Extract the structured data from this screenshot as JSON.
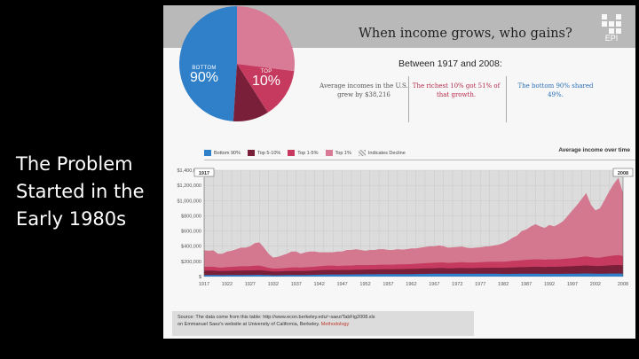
{
  "slide": {
    "lines": [
      "The Problem",
      "Started in the",
      "Early 1980s"
    ]
  },
  "infographic": {
    "title": "When income grows, who gains?",
    "logo_text": "EPI",
    "period": "Between 1917 and 2008:",
    "stats": [
      "Average incomes in the U.S. grew by $38,216",
      "The richest 10% got 51% of that growth.",
      "The bottom 90% shared 49%."
    ],
    "pie": {
      "bottom_label": "BOTTOM",
      "bottom_value": "90%",
      "top_label": "TOP",
      "top_value": "10%"
    },
    "source_line1": "Source: The data come from this table: http://www.econ.berkeley.edu/~saez/TabFig2008.xls",
    "source_line2": "on Emmanuel Saez's website at University of California, Berkeley.",
    "source_link": "Methodology"
  },
  "colors": {
    "bottom90": "#2f7fc9",
    "top5_10": "#7a1f3a",
    "top1_5": "#c53a5e",
    "top1": "#d97a96",
    "top1_area": "#d3788f",
    "grid_bg": "#dcdcdc"
  },
  "chart_data": {
    "type": "area",
    "title": "Average income over time",
    "legend": [
      {
        "name": "Bottom 90%",
        "color": "#2f7fc9"
      },
      {
        "name": "Top 5-10%",
        "color": "#7a1f3a"
      },
      {
        "name": "Top 1-5%",
        "color": "#c53a5e"
      },
      {
        "name": "Top 1%",
        "color": "#d97a96"
      },
      {
        "name": "Indicates Decline",
        "color": "#bbbbbb"
      }
    ],
    "start_marker": "1917",
    "end_marker": "2008",
    "y_ticks": [
      "$1,400,000",
      "$1,200,000",
      "$1,000,000",
      "$800,000",
      "$600,000",
      "$400,000",
      "$200,000",
      "$"
    ],
    "ylim": [
      0,
      1400000
    ],
    "x_ticks": [
      "1917",
      "1922",
      "1927",
      "1932",
      "1937",
      "1942",
      "1947",
      "1952",
      "1957",
      "1962",
      "1967",
      "1972",
      "1977",
      "1982",
      "1987",
      "1992",
      "1997",
      "2002",
      "2008"
    ],
    "x": [
      1917,
      1918,
      1919,
      1920,
      1921,
      1922,
      1923,
      1924,
      1925,
      1926,
      1927,
      1928,
      1929,
      1930,
      1931,
      1932,
      1933,
      1934,
      1935,
      1936,
      1937,
      1938,
      1939,
      1940,
      1941,
      1942,
      1943,
      1944,
      1945,
      1946,
      1947,
      1948,
      1949,
      1950,
      1951,
      1952,
      1953,
      1954,
      1955,
      1956,
      1957,
      1958,
      1959,
      1960,
      1961,
      1962,
      1963,
      1964,
      1965,
      1966,
      1967,
      1968,
      1969,
      1970,
      1971,
      1972,
      1973,
      1974,
      1975,
      1976,
      1977,
      1978,
      1979,
      1980,
      1981,
      1982,
      1983,
      1984,
      1985,
      1986,
      1987,
      1988,
      1989,
      1990,
      1991,
      1992,
      1993,
      1994,
      1995,
      1996,
      1997,
      1998,
      1999,
      2000,
      2001,
      2002,
      2003,
      2004,
      2005,
      2006,
      2007,
      2008
    ],
    "series": [
      {
        "name": "Top 1%",
        "values": [
          345000,
          340000,
          345000,
          300000,
          300000,
          330000,
          340000,
          360000,
          380000,
          380000,
          400000,
          440000,
          450000,
          380000,
          300000,
          250000,
          260000,
          280000,
          300000,
          330000,
          330000,
          300000,
          320000,
          330000,
          330000,
          320000,
          320000,
          320000,
          320000,
          330000,
          330000,
          350000,
          350000,
          360000,
          350000,
          340000,
          350000,
          350000,
          360000,
          360000,
          350000,
          350000,
          360000,
          355000,
          360000,
          370000,
          370000,
          380000,
          390000,
          400000,
          400000,
          410000,
          400000,
          380000,
          385000,
          390000,
          395000,
          380000,
          375000,
          380000,
          385000,
          395000,
          400000,
          410000,
          420000,
          440000,
          470000,
          510000,
          540000,
          600000,
          620000,
          660000,
          690000,
          660000,
          640000,
          680000,
          660000,
          690000,
          730000,
          800000,
          870000,
          940000,
          1020000,
          1100000,
          950000,
          870000,
          900000,
          1010000,
          1120000,
          1220000,
          1300000,
          1100000
        ]
      },
      {
        "name": "Top 1-5%",
        "values": [
          130000,
          128000,
          130000,
          120000,
          118000,
          125000,
          128000,
          132000,
          135000,
          135000,
          138000,
          142000,
          145000,
          132000,
          115000,
          105000,
          106000,
          110000,
          115000,
          120000,
          122000,
          118000,
          122000,
          126000,
          130000,
          135000,
          140000,
          145000,
          145000,
          140000,
          142000,
          145000,
          145000,
          150000,
          150000,
          150000,
          152000,
          152000,
          155000,
          156000,
          156000,
          156000,
          160000,
          160000,
          162000,
          165000,
          168000,
          172000,
          176000,
          180000,
          182000,
          186000,
          186000,
          180000,
          182000,
          186000,
          190000,
          186000,
          184000,
          186000,
          188000,
          192000,
          194000,
          196000,
          196000,
          196000,
          200000,
          206000,
          210000,
          215000,
          220000,
          225000,
          228000,
          226000,
          222000,
          226000,
          226000,
          228000,
          232000,
          238000,
          244000,
          250000,
          258000,
          265000,
          255000,
          248000,
          250000,
          260000,
          268000,
          276000,
          282000,
          270000
        ]
      },
      {
        "name": "Top 5-10%",
        "values": [
          78000,
          77000,
          78000,
          74000,
          72000,
          75000,
          76000,
          78000,
          79000,
          80000,
          80000,
          82000,
          83000,
          78000,
          72000,
          68000,
          68000,
          70000,
          72000,
          74000,
          75000,
          73000,
          75000,
          77000,
          80000,
          83000,
          86000,
          88000,
          88000,
          86000,
          87000,
          88000,
          88000,
          90000,
          91000,
          92000,
          93000,
          93000,
          95000,
          96000,
          96000,
          96000,
          98000,
          98000,
          100000,
          101000,
          103000,
          105000,
          107000,
          109000,
          110000,
          112000,
          112000,
          109000,
          110000,
          112000,
          114000,
          112000,
          111000,
          112000,
          113000,
          115000,
          116000,
          117000,
          117000,
          116000,
          118000,
          120000,
          122000,
          124000,
          126000,
          128000,
          129000,
          128000,
          126000,
          128000,
          128000,
          130000,
          132000,
          134000,
          137000,
          140000,
          143000,
          146000,
          142000,
          139000,
          140000,
          144000,
          147000,
          150000,
          152000,
          148000
        ]
      },
      {
        "name": "Bottom 90%",
        "values": [
          21000,
          20500,
          21000,
          19500,
          19000,
          20000,
          20500,
          21000,
          21500,
          21500,
          22000,
          22500,
          23000,
          21500,
          19500,
          18000,
          18000,
          18500,
          19500,
          20500,
          21000,
          20000,
          21000,
          22000,
          23000,
          24500,
          26000,
          27000,
          27500,
          27000,
          27500,
          28000,
          28000,
          29000,
          29500,
          30000,
          30500,
          30500,
          31000,
          31500,
          31500,
          31500,
          32000,
          32000,
          32500,
          33000,
          33500,
          34500,
          35500,
          36500,
          37000,
          38000,
          38000,
          37000,
          37000,
          38000,
          38500,
          37500,
          36500,
          37000,
          37500,
          38500,
          38500,
          37500,
          36500,
          35500,
          35500,
          36000,
          36500,
          37000,
          37500,
          37500,
          37500,
          36500,
          35500,
          36000,
          35500,
          36000,
          36500,
          37000,
          38000,
          39000,
          40000,
          41000,
          40000,
          39000,
          38500,
          39000,
          39500,
          40000,
          40500,
          39000
        ]
      }
    ]
  }
}
